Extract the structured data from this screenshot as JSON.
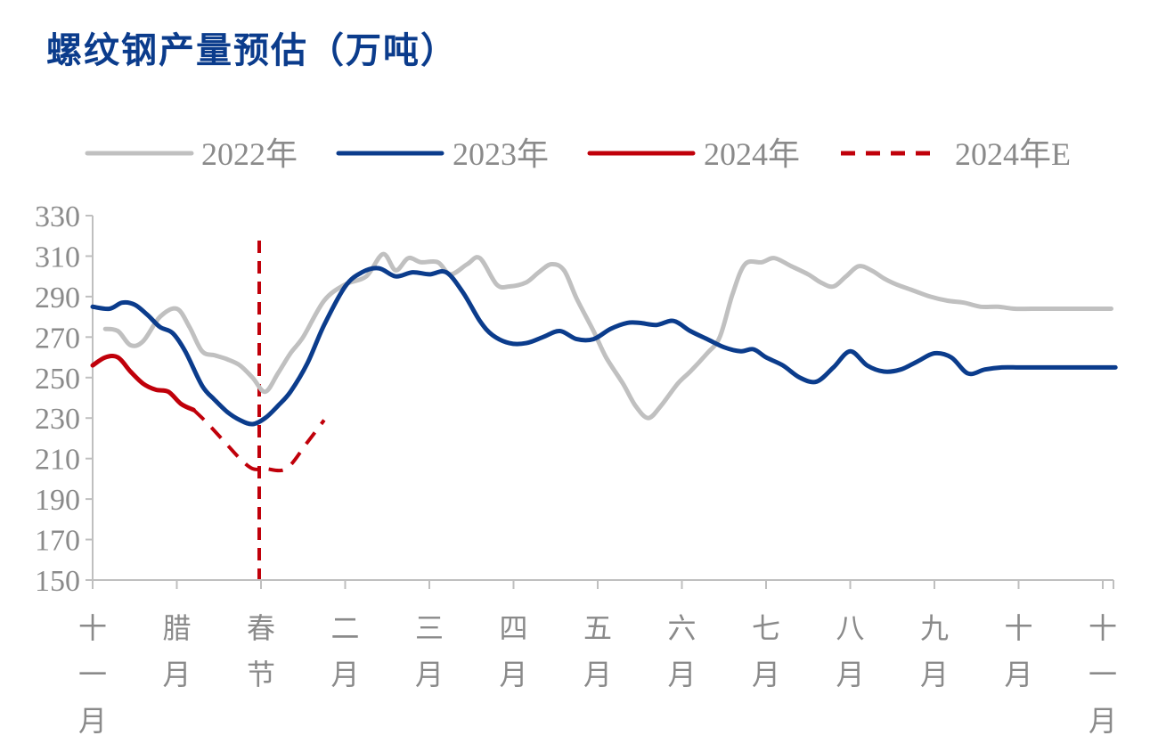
{
  "chart_data": {
    "type": "line",
    "title": "螺纹钢产量预估（万吨）",
    "ylim": [
      150,
      330
    ],
    "yticks": [
      150,
      170,
      190,
      210,
      230,
      250,
      270,
      290,
      310,
      330
    ],
    "x_categories": [
      "十一月",
      "腊月",
      "春节",
      "二月",
      "三月",
      "四月",
      "五月",
      "六月",
      "七月",
      "八月",
      "九月",
      "十月",
      "十一月"
    ],
    "legend_position": "top",
    "grid": false,
    "spring_festival_marker": {
      "x": 2.0,
      "label": "春节"
    },
    "series": [
      {
        "name": "2022年",
        "color": "#c0c0c0",
        "dash": false,
        "x": [
          0.15,
          0.3,
          0.45,
          0.6,
          0.8,
          1.0,
          1.15,
          1.3,
          1.45,
          1.6,
          1.75,
          1.9,
          2.05,
          2.2,
          2.35,
          2.5,
          2.75,
          3.0,
          3.25,
          3.45,
          3.6,
          3.75,
          3.9,
          4.1,
          4.25,
          4.45,
          4.6,
          4.8,
          4.95,
          5.15,
          5.3,
          5.45,
          5.6,
          5.75,
          5.95,
          6.1,
          6.3,
          6.45,
          6.6,
          6.75,
          6.95,
          7.1,
          7.3,
          7.45,
          7.6,
          7.75,
          7.95,
          8.1,
          8.3,
          8.5,
          8.65,
          8.8,
          8.95,
          9.1,
          9.25,
          9.4,
          9.55,
          9.75,
          9.95,
          10.15,
          10.35,
          10.55,
          10.75,
          10.95,
          11.15,
          11.35,
          11.55,
          11.75,
          11.95,
          12.1
        ],
        "values": [
          274,
          273,
          266,
          268,
          280,
          284,
          275,
          263,
          261,
          259,
          256,
          250,
          243,
          252,
          262,
          270,
          288,
          296,
          300,
          311,
          303,
          309,
          307,
          307,
          301,
          306,
          309,
          296,
          295,
          297,
          302,
          306,
          303,
          289,
          273,
          260,
          247,
          236,
          230,
          236,
          247,
          253,
          262,
          270,
          291,
          306,
          307,
          309,
          305,
          301,
          297,
          295,
          300,
          305,
          303,
          299,
          296,
          293,
          290,
          288,
          287,
          285,
          285,
          284,
          284,
          284,
          284,
          284,
          284,
          284
        ]
      },
      {
        "name": "2023年",
        "color": "#0b3c8c",
        "dash": false,
        "x": [
          0.0,
          0.2,
          0.35,
          0.5,
          0.65,
          0.8,
          0.95,
          1.1,
          1.3,
          1.45,
          1.6,
          1.75,
          1.9,
          2.05,
          2.2,
          2.35,
          2.55,
          2.75,
          3.0,
          3.2,
          3.4,
          3.6,
          3.8,
          4.0,
          4.2,
          4.4,
          4.6,
          4.75,
          4.95,
          5.15,
          5.35,
          5.55,
          5.75,
          5.95,
          6.15,
          6.35,
          6.5,
          6.7,
          6.9,
          7.1,
          7.3,
          7.5,
          7.7,
          7.85,
          8.0,
          8.2,
          8.4,
          8.6,
          8.8,
          9.0,
          9.2,
          9.4,
          9.6,
          9.8,
          10.0,
          10.2,
          10.4,
          10.6,
          10.8,
          11.0,
          11.2,
          11.4,
          11.55,
          11.7,
          11.85,
          12.0,
          12.15
        ],
        "values": [
          285,
          284,
          287,
          286,
          281,
          275,
          272,
          263,
          246,
          239,
          233,
          229,
          227,
          230,
          236,
          243,
          257,
          276,
          295,
          302,
          304,
          300,
          302,
          301,
          302,
          292,
          278,
          271,
          267,
          267,
          270,
          273,
          269,
          269,
          274,
          277,
          277,
          276,
          278,
          273,
          269,
          265,
          263,
          264,
          260,
          256,
          250,
          248,
          255,
          263,
          256,
          253,
          254,
          258,
          262,
          260,
          252,
          254,
          255,
          255,
          255,
          255,
          255,
          255,
          255,
          255,
          255
        ]
      },
      {
        "name": "2024年",
        "color": "#c0000a",
        "dash": false,
        "x": [
          0.0,
          0.15,
          0.3,
          0.45,
          0.6,
          0.75,
          0.9,
          1.05,
          1.2
        ],
        "values": [
          256,
          260,
          260,
          253,
          247,
          244,
          243,
          237,
          234
        ]
      },
      {
        "name": "2024年E",
        "color": "#c0000a",
        "dash": true,
        "x": [
          1.2,
          1.35,
          1.55,
          1.75,
          1.9,
          2.05,
          2.3,
          2.55,
          2.75
        ],
        "values": [
          234,
          228,
          219,
          210,
          205,
          205,
          205,
          218,
          229
        ]
      }
    ]
  }
}
